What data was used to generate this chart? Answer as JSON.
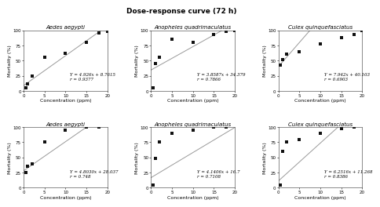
{
  "title": "Dose-response curve (72 h)",
  "subplots": [
    {
      "title": "Aedes aegypti",
      "eq_line1": "Y = 4.926x + 8.7615",
      "eq_line2": "r = 0.9377",
      "x_data": [
        0.5,
        1,
        2,
        5,
        10,
        15,
        18,
        20
      ],
      "y_data": [
        5,
        12,
        25,
        55,
        62,
        80,
        95,
        98
      ],
      "slope": 4.926,
      "intercept": 8.7615,
      "x_range": [
        0,
        20
      ],
      "y_range": [
        0,
        100
      ],
      "xticks": [
        0,
        5,
        10,
        15,
        20
      ],
      "yticks": [
        0,
        25,
        50,
        75,
        100
      ]
    },
    {
      "title": "Anopheles quadrimaculatus",
      "eq_line1": "Y = 3.8587x + 34.379",
      "eq_line2": "r = 0.7866",
      "x_data": [
        0.5,
        1,
        2,
        5,
        10,
        15,
        18,
        20
      ],
      "y_data": [
        5,
        45,
        55,
        85,
        80,
        93,
        98,
        100
      ],
      "slope": 3.8587,
      "intercept": 34.379,
      "x_range": [
        0,
        20
      ],
      "y_range": [
        0,
        100
      ],
      "xticks": [
        0,
        5,
        10,
        15,
        20
      ],
      "yticks": [
        0,
        25,
        50,
        75,
        100
      ]
    },
    {
      "title": "Culex quinquefasciatus",
      "eq_line1": "Y = 7.942x + 40.103",
      "eq_line2": "r = 0.6903",
      "x_data": [
        0.5,
        1,
        2,
        5,
        10,
        15,
        18,
        20
      ],
      "y_data": [
        42,
        52,
        60,
        65,
        78,
        88,
        93,
        100
      ],
      "slope": 7.942,
      "intercept": 40.103,
      "x_range": [
        0,
        20
      ],
      "y_range": [
        0,
        100
      ],
      "xticks": [
        0,
        5,
        10,
        15,
        20
      ],
      "yticks": [
        0,
        25,
        50,
        75,
        100
      ]
    },
    {
      "title": "Aedes aegypti",
      "eq_line1": "Y = 4.8030x + 28.037",
      "eq_line2": "r = 0.748",
      "x_data": [
        0.5,
        1,
        2,
        5,
        10,
        15,
        18
      ],
      "y_data": [
        25,
        35,
        40,
        75,
        95,
        100,
        100
      ],
      "slope": 4.803,
      "intercept": 28.037,
      "x_range": [
        0,
        20
      ],
      "y_range": [
        0,
        100
      ],
      "xticks": [
        0,
        5,
        10,
        15,
        20
      ],
      "yticks": [
        0,
        25,
        50,
        75,
        100
      ]
    },
    {
      "title": "Anopheles quadrimaculatus",
      "eq_line1": "Y = 4.1406x + 16.7",
      "eq_line2": "r = 0.7108",
      "x_data": [
        0.5,
        1,
        2,
        5,
        10,
        15,
        18
      ],
      "y_data": [
        5,
        48,
        75,
        90,
        95,
        100,
        100
      ],
      "slope": 4.1406,
      "intercept": 16.7,
      "x_range": [
        0,
        20
      ],
      "y_range": [
        0,
        100
      ],
      "xticks": [
        0,
        5,
        10,
        15,
        20
      ],
      "yticks": [
        0,
        25,
        50,
        75,
        100
      ]
    },
    {
      "title": "Culex quinquefasciatus",
      "eq_line1": "Y = 6.2516x + 11.268",
      "eq_line2": "r = 0.8386",
      "x_data": [
        0.5,
        1,
        2,
        5,
        10,
        15,
        18
      ],
      "y_data": [
        5,
        60,
        75,
        80,
        90,
        98,
        100
      ],
      "slope": 6.2516,
      "intercept": 11.268,
      "x_range": [
        0,
        20
      ],
      "y_range": [
        0,
        100
      ],
      "xticks": [
        0,
        5,
        10,
        15,
        20
      ],
      "yticks": [
        0,
        25,
        50,
        75,
        100
      ]
    }
  ],
  "xlabel": "Concentration (ppm)",
  "ylabel": "Mortality (%)",
  "marker_color": "#111111",
  "line_color": "#999999",
  "bg_color": "#ffffff",
  "title_fontsize": 6.5,
  "label_fontsize": 4.5,
  "tick_fontsize": 4.0,
  "eq_fontsize": 4.0,
  "subplot_title_fontsize": 5.0,
  "marker_size": 5,
  "linewidth": 0.7
}
